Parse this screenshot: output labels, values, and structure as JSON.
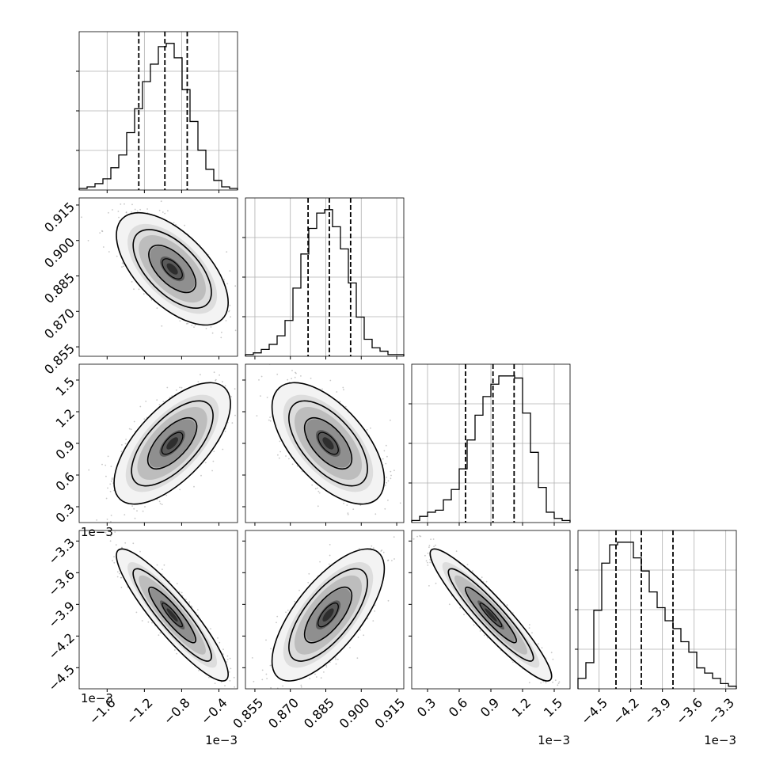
{
  "chart_data": {
    "type": "corner",
    "parameters": [
      {
        "range": [
          -1.9,
          -0.2
        ],
        "ticks": [
          -1.6,
          -1.2,
          -0.8,
          -0.4
        ],
        "tick_labels": [
          "−1.6",
          "−1.2",
          "−0.8",
          "−0.4"
        ],
        "offset_label": "1e−3",
        "quantiles": [
          -1.26,
          -0.98,
          -0.74
        ],
        "hist_counts": [
          1,
          2,
          4,
          7,
          14,
          22,
          36,
          51,
          68,
          79,
          90,
          92,
          83,
          63,
          43,
          25,
          13,
          6,
          2,
          1
        ]
      },
      {
        "range": [
          0.851,
          0.918
        ],
        "ticks": [
          0.855,
          0.87,
          0.885,
          0.9,
          0.915
        ],
        "tick_labels": [
          "0.855",
          "0.870",
          "0.885",
          "0.900",
          "0.915"
        ],
        "offset_label": "",
        "quantiles": [
          0.8775,
          0.8865,
          0.8955
        ],
        "hist_counts": [
          1,
          2,
          4,
          7,
          12,
          21,
          40,
          60,
          75,
          84,
          86,
          76,
          63,
          43,
          23,
          10,
          5,
          3,
          1,
          1
        ]
      },
      {
        "range": [
          0.15,
          1.65
        ],
        "ticks": [
          0.3,
          0.6,
          0.9,
          1.2,
          1.5
        ],
        "tick_labels": [
          "0.3",
          "0.6",
          "0.9",
          "1.2",
          "1.5"
        ],
        "offset_label": "1e−3",
        "quantiles": [
          0.66,
          0.92,
          1.12
        ],
        "hist_counts": [
          1,
          3,
          5,
          6,
          11,
          16,
          26,
          40,
          52,
          61,
          67,
          71,
          71,
          70,
          53,
          34,
          17,
          5,
          2,
          1
        ]
      },
      {
        "range": [
          -4.7,
          -3.2
        ],
        "ticks": [
          -4.5,
          -4.2,
          -3.9,
          -3.6,
          -3.3
        ],
        "tick_labels": [
          "−4.5",
          "−4.2",
          "−3.9",
          "−3.6",
          "−3.3"
        ],
        "offset_label": "1e−3",
        "quantiles": [
          -4.34,
          -4.1,
          -3.8
        ],
        "hist_counts": [
          4,
          10,
          30,
          48,
          55,
          56,
          56,
          50,
          45,
          37,
          31,
          26,
          23,
          18,
          14,
          8,
          6,
          4,
          2,
          1
        ]
      }
    ],
    "pairs": [
      {
        "row": 1,
        "col": 0,
        "mean": [
          -0.9,
          0.888
        ],
        "sigma": [
          0.24,
          0.0095
        ],
        "rho": -0.6
      },
      {
        "row": 2,
        "col": 0,
        "mean": [
          -0.9,
          0.9
        ],
        "sigma": [
          0.25,
          0.23
        ],
        "rho": 0.65
      },
      {
        "row": 2,
        "col": 1,
        "mean": [
          0.886,
          0.9
        ],
        "sigma": [
          0.0095,
          0.23
        ],
        "rho": -0.6
      },
      {
        "row": 3,
        "col": 0,
        "mean": [
          -0.9,
          -4.0
        ],
        "sigma": [
          0.24,
          0.25
        ],
        "rho": -0.9
      },
      {
        "row": 3,
        "col": 1,
        "mean": [
          0.886,
          -4.0
        ],
        "sigma": [
          0.0095,
          0.25
        ],
        "rho": 0.7
      },
      {
        "row": 3,
        "col": 2,
        "mean": [
          0.9,
          -4.0
        ],
        "sigma": [
          0.23,
          0.25
        ],
        "rho": -0.93
      }
    ],
    "grid": true,
    "colors": {
      "line": "#000000",
      "points": "#9a9a9a",
      "grid": "#b0b0b0"
    }
  }
}
